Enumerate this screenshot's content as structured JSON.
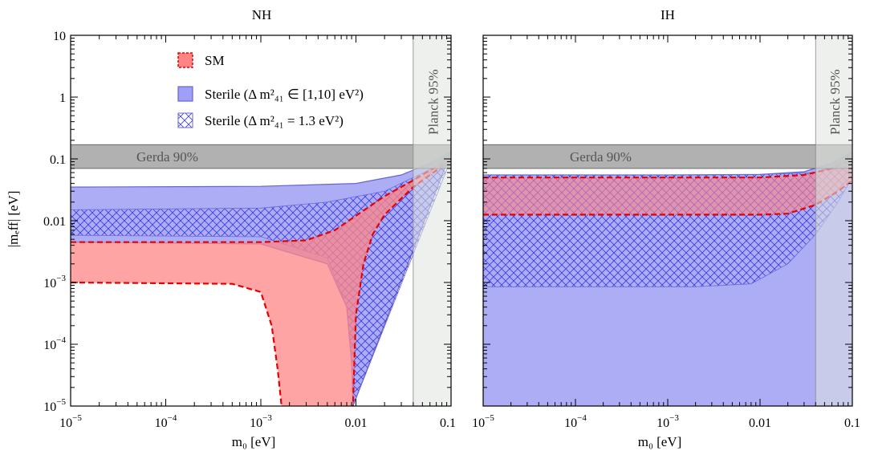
{
  "chart_data": [
    {
      "type": "area",
      "title": "NH",
      "xlabel": "m₀ [eV]",
      "ylabel": "|mₑff| [eV]",
      "xscale": "log",
      "yscale": "log",
      "xlim": [
        1e-05,
        0.1
      ],
      "ylim": [
        1e-05,
        10
      ],
      "xticks": [
        {
          "value": 1e-05,
          "base": "10",
          "exp": "−5"
        },
        {
          "value": 0.0001,
          "base": "10",
          "exp": "−4"
        },
        {
          "value": 0.001,
          "base": "10",
          "exp": "−3"
        },
        {
          "value": 0.01,
          "base": "0.01",
          "exp": ""
        },
        {
          "value": 0.1,
          "base": "0.1",
          "exp": ""
        }
      ],
      "yticks": [
        {
          "value": 1e-05,
          "base": "10",
          "exp": "−5"
        },
        {
          "value": 0.0001,
          "base": "10",
          "exp": "−4"
        },
        {
          "value": 0.001,
          "base": "10",
          "exp": "−3"
        },
        {
          "value": 0.01,
          "base": "0.01",
          "exp": ""
        },
        {
          "value": 0.1,
          "base": "0.1",
          "exp": ""
        },
        {
          "value": 1,
          "base": "1",
          "exp": ""
        },
        {
          "value": 10,
          "base": "10",
          "exp": ""
        }
      ],
      "bands": {
        "gerda": {
          "label": "Gerda 90%",
          "y_range": [
            0.07,
            0.17
          ]
        },
        "planck": {
          "label": "Planck 95%",
          "x_range": [
            0.04,
            0.1
          ]
        }
      },
      "series": [
        {
          "name": "Sterile (Δm²₄₁ ∈ [1,10] eV²)",
          "kind": "filled",
          "upper": [
            [
              1e-05,
              0.035
            ],
            [
              0.001,
              0.036
            ],
            [
              0.01,
              0.04
            ],
            [
              0.03,
              0.055
            ],
            [
              0.06,
              0.085
            ],
            [
              0.1,
              0.13
            ]
          ],
          "lower": [
            [
              1e-05,
              0.0045
            ],
            [
              0.001,
              0.0042
            ],
            [
              0.005,
              0.002
            ],
            [
              0.008,
              0.0004
            ],
            [
              0.009,
              5e-05
            ],
            [
              0.0093,
              1e-05
            ]
          ]
        },
        {
          "name": "Sterile (Δm²₄₁ = 1.3 eV²)",
          "kind": "hatched",
          "upper": [
            [
              1e-05,
              0.015
            ],
            [
              0.001,
              0.016
            ],
            [
              0.005,
              0.02
            ],
            [
              0.02,
              0.03
            ],
            [
              0.04,
              0.05
            ],
            [
              0.07,
              0.075
            ],
            [
              0.1,
              0.1
            ]
          ],
          "lower": [
            [
              1e-05,
              0.0058
            ],
            [
              0.001,
              0.0055
            ],
            [
              0.005,
              0.0025
            ],
            [
              0.008,
              0.0004
            ],
            [
              0.009,
              5e-05
            ],
            [
              0.0093,
              1e-05
            ]
          ]
        },
        {
          "name": "SM",
          "kind": "dashed-filled",
          "upper": [
            [
              1e-05,
              0.0045
            ],
            [
              0.001,
              0.0045
            ],
            [
              0.003,
              0.0048
            ],
            [
              0.006,
              0.007
            ],
            [
              0.01,
              0.012
            ],
            [
              0.02,
              0.025
            ],
            [
              0.04,
              0.045
            ],
            [
              0.07,
              0.075
            ],
            [
              0.1,
              0.1
            ]
          ],
          "lower": [
            [
              1e-05,
              0.001
            ],
            [
              0.0005,
              0.00095
            ],
            [
              0.001,
              0.0007
            ],
            [
              0.0013,
              0.0002
            ],
            [
              0.0015,
              4e-05
            ],
            [
              0.00165,
              1e-05
            ]
          ],
          "lower2": [
            [
              0.1,
              0.1
            ],
            [
              0.07,
              0.065
            ],
            [
              0.04,
              0.035
            ],
            [
              0.02,
              0.0125
            ],
            [
              0.015,
              0.006
            ],
            [
              0.012,
              0.002
            ],
            [
              0.01,
              0.0003
            ],
            [
              0.0095,
              3e-05
            ],
            [
              0.0093,
              1e-05
            ]
          ]
        }
      ]
    },
    {
      "type": "area",
      "title": "IH",
      "xlabel": "m₀ [eV]",
      "xscale": "log",
      "yscale": "log",
      "xlim": [
        1e-05,
        0.1
      ],
      "ylim": [
        1e-05,
        10
      ],
      "xticks": [
        {
          "value": 1e-05,
          "base": "10",
          "exp": "−5"
        },
        {
          "value": 0.0001,
          "base": "10",
          "exp": "−4"
        },
        {
          "value": 0.001,
          "base": "10",
          "exp": "−3"
        },
        {
          "value": 0.01,
          "base": "0.01",
          "exp": ""
        },
        {
          "value": 0.1,
          "base": "0.1",
          "exp": ""
        }
      ],
      "bands": {
        "gerda": {
          "label": "Gerda 90%",
          "y_range": [
            0.07,
            0.17
          ]
        },
        "planck": {
          "label": "Planck 95%",
          "x_range": [
            0.04,
            0.1
          ]
        }
      },
      "series": [
        {
          "name": "Sterile (Δm²₄₁ ∈ [1,10] eV²)",
          "kind": "filled",
          "upper": [
            [
              1e-05,
              0.055
            ],
            [
              0.001,
              0.055
            ],
            [
              0.01,
              0.056
            ],
            [
              0.03,
              0.062
            ],
            [
              0.06,
              0.085
            ],
            [
              0.1,
              0.13
            ]
          ],
          "lower": [
            [
              1e-05,
              1e-05
            ],
            [
              0.1,
              1e-05
            ]
          ]
        },
        {
          "name": "Sterile (Δm²₄₁ = 1.3 eV²)",
          "kind": "hatched",
          "upper": [
            [
              1e-05,
              0.055
            ],
            [
              0.001,
              0.055
            ],
            [
              0.01,
              0.056
            ],
            [
              0.04,
              0.06
            ],
            [
              0.1,
              0.1
            ]
          ],
          "lower": [
            [
              1e-05,
              0.00085
            ],
            [
              0.002,
              0.00085
            ],
            [
              0.008,
              0.00095
            ],
            [
              0.02,
              0.002
            ],
            [
              0.04,
              0.006
            ],
            [
              0.07,
              0.02
            ],
            [
              0.1,
              0.05
            ]
          ]
        },
        {
          "name": "SM",
          "kind": "dashed-filled",
          "upper": [
            [
              1e-05,
              0.05
            ],
            [
              0.001,
              0.05
            ],
            [
              0.01,
              0.05
            ],
            [
              0.03,
              0.055
            ],
            [
              0.06,
              0.07
            ],
            [
              0.1,
              0.1
            ]
          ],
          "lower": [
            [
              1e-05,
              0.0125
            ],
            [
              0.001,
              0.0125
            ],
            [
              0.01,
              0.0125
            ],
            [
              0.02,
              0.013
            ],
            [
              0.04,
              0.018
            ],
            [
              0.07,
              0.03
            ],
            [
              0.1,
              0.045
            ]
          ]
        }
      ]
    }
  ],
  "legend": {
    "placement": "top-left (NH panel)",
    "items": [
      {
        "id": "sm",
        "label": "SM",
        "swatch": "dashed-red"
      },
      {
        "id": "sterile-range",
        "label": "Sterile (Δ m²₄₁ ∈ [1,10] eV²)",
        "swatch": "blue-filled"
      },
      {
        "id": "sterile-fixed",
        "label": "Sterile (Δ m²₄₁ = 1.3 eV²)",
        "swatch": "blue-hatched"
      }
    ]
  },
  "colors": {
    "sm_fill": "#ff8585",
    "sm_line": "#e60000",
    "sterile_fill": "#9f9ff5",
    "sterile_line": "#6666cc",
    "hatch": "#3a3ae0",
    "gerda": "#a9a9a9",
    "planck": "#dfe3df"
  }
}
